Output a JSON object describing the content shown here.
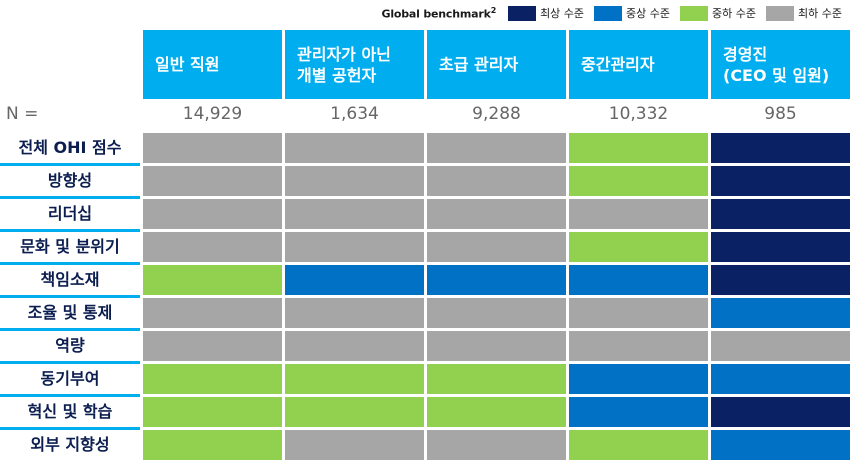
{
  "legend": {
    "title": "Global benchmark",
    "title_sup": "2",
    "items": [
      {
        "key": "top",
        "label": "최상 수준",
        "color": "#0A2163"
      },
      {
        "key": "upper",
        "label": "중상 수준",
        "color": "#0071C5"
      },
      {
        "key": "lower",
        "label": "중하 수준",
        "color": "#92D050"
      },
      {
        "key": "bottom",
        "label": "최하 수준",
        "color": "#A6A6A6"
      }
    ]
  },
  "columns": [
    {
      "lines": [
        "일반 직원"
      ],
      "n": "14,929"
    },
    {
      "lines": [
        "관리자가 아닌",
        "개별 공헌자"
      ],
      "n": "1,634"
    },
    {
      "lines": [
        "초급 관리자"
      ],
      "n": "9,288"
    },
    {
      "lines": [
        "중간관리자"
      ],
      "n": "10,332"
    },
    {
      "lines": [
        "경영진",
        "(CEO 및 임원)"
      ],
      "n": "985"
    }
  ],
  "n_label": "N =",
  "chart_data": {
    "type": "heatmap",
    "columns": [
      "일반 직원",
      "관리자가 아닌 개별 공헌자",
      "초급 관리자",
      "중간관리자",
      "경영진 (CEO 및 임원)"
    ],
    "n": [
      "14,929",
      "1,634",
      "9,288",
      "10,332",
      "985"
    ],
    "rows": [
      {
        "label": "전체 OHI 점수",
        "values": [
          "bottom",
          "bottom",
          "bottom",
          "lower",
          "top"
        ]
      },
      {
        "label": "방향성",
        "values": [
          "bottom",
          "bottom",
          "bottom",
          "lower",
          "top"
        ]
      },
      {
        "label": "리더십",
        "values": [
          "bottom",
          "bottom",
          "bottom",
          "bottom",
          "top"
        ]
      },
      {
        "label": "문화 및 분위기",
        "values": [
          "bottom",
          "bottom",
          "bottom",
          "lower",
          "top"
        ]
      },
      {
        "label": "책임소재",
        "values": [
          "lower",
          "upper",
          "upper",
          "upper",
          "top"
        ]
      },
      {
        "label": "조율 및 통제",
        "values": [
          "bottom",
          "bottom",
          "bottom",
          "bottom",
          "upper"
        ]
      },
      {
        "label": "역량",
        "values": [
          "bottom",
          "bottom",
          "bottom",
          "bottom",
          "bottom"
        ]
      },
      {
        "label": "동기부여",
        "values": [
          "lower",
          "lower",
          "lower",
          "upper",
          "upper"
        ]
      },
      {
        "label": "혁신 및 학습",
        "values": [
          "lower",
          "lower",
          "lower",
          "upper",
          "top"
        ]
      },
      {
        "label": "외부 지향성",
        "values": [
          "lower",
          "bottom",
          "bottom",
          "lower",
          "upper"
        ]
      }
    ],
    "legend_placement": "top-right"
  }
}
